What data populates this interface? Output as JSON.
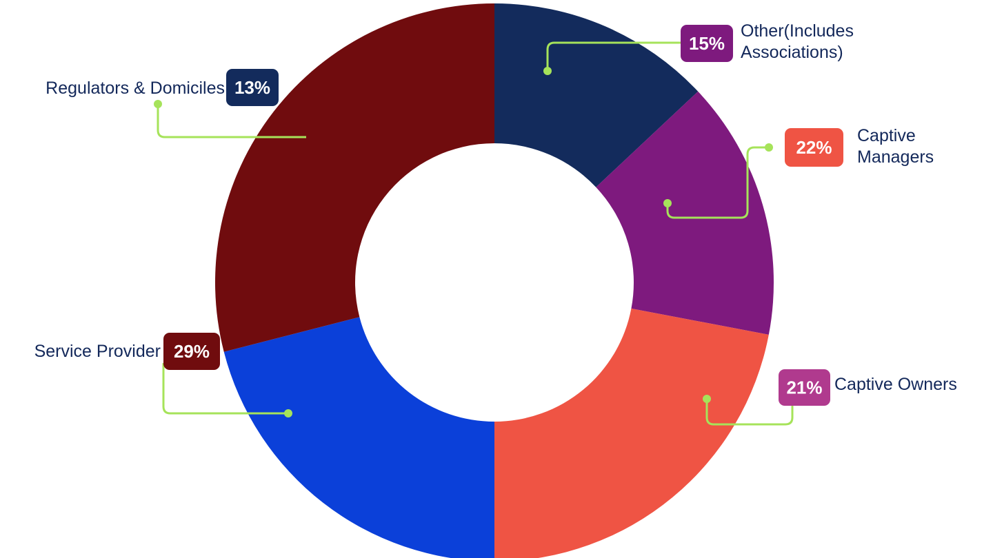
{
  "chart_data": {
    "type": "pie",
    "variant": "donut",
    "title": "",
    "slices": [
      {
        "name": "Captive Owners",
        "value": 21,
        "label": "21%",
        "color": "#0b40d9",
        "label_lines": [
          "Captive Owners"
        ]
      },
      {
        "name": "Service Provider",
        "value": 29,
        "label": "29%",
        "color": "#700c0e",
        "label_lines": [
          "Service Provider"
        ]
      },
      {
        "name": "Regulators & Domiciles",
        "value": 13,
        "label": "13%",
        "color": "#132b5c",
        "label_lines": [
          "Regulators & Domiciles"
        ]
      },
      {
        "name": "Other(Includes Associations)",
        "value": 15,
        "label": "15%",
        "color": "#7e1a7e",
        "label_lines": [
          "Other(Includes",
          "Associations)"
        ]
      },
      {
        "name": "Captive Managers",
        "value": 22,
        "label": "22%",
        "color": "#ef5444",
        "label_lines": [
          "Captive",
          "Managers"
        ]
      }
    ],
    "badge_colors": {
      "Captive Owners": "#b03a8e",
      "Service Provider": "#700c0e",
      "Regulators & Domiciles": "#132b5c",
      "Other(Includes Associations)": "#7e1a7e",
      "Captive Managers": "#ef5444"
    },
    "leader_color": "#a6e35a",
    "label_text_color": "#13285a",
    "legend": "none"
  }
}
